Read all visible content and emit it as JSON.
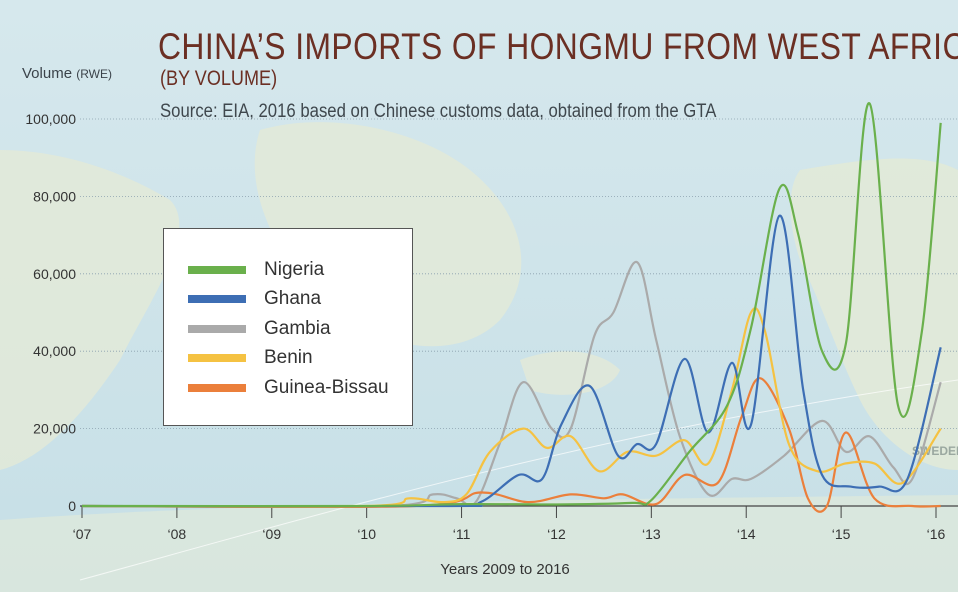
{
  "title": "CHINA’S IMPORTS OF HONGMU FROM WEST AFRICA",
  "subtitle": "(BY VOLUME)",
  "source": "Source: EIA, 2016 based on Chinese customs data, obtained from the GTA",
  "ylabel_main": "Volume",
  "ylabel_unit": "(RWE)",
  "xlabel": "Years 2009 to 2016",
  "map_label": "SWEDEN",
  "chart_data": {
    "type": "line",
    "title": "CHINA’S IMPORTS OF HONGMU FROM WEST AFRICA",
    "subtitle": "(BY VOLUME)",
    "ylabel": "Volume (RWE)",
    "xlabel": "Years 2009 to 2016",
    "ylim": [
      0,
      105000
    ],
    "xlim": [
      2007,
      2016.1
    ],
    "yticks": [
      0,
      20000,
      40000,
      60000,
      80000,
      100000
    ],
    "ytick_labels": [
      "0",
      "20,000",
      "40,000",
      "60,000",
      "80,000",
      "100,000"
    ],
    "xticks": [
      2007,
      2008,
      2009,
      2010,
      2011,
      2012,
      2013,
      2014,
      2015,
      2016
    ],
    "xtick_labels": [
      "‘07",
      "‘08",
      "‘09",
      "‘10",
      "‘11",
      "‘12",
      "‘13",
      "‘14",
      "‘15",
      "‘16"
    ],
    "legend_position": "left",
    "series": [
      {
        "name": "Nigeria",
        "color": "#6ab04c",
        "points": [
          [
            2007,
            0
          ],
          [
            2010,
            0
          ],
          [
            2011,
            500
          ],
          [
            2012,
            400
          ],
          [
            2012.8,
            800
          ],
          [
            2013,
            1500
          ],
          [
            2013.4,
            14000
          ],
          [
            2013.8,
            26000
          ],
          [
            2014.05,
            46000
          ],
          [
            2014.35,
            82000
          ],
          [
            2014.55,
            70000
          ],
          [
            2014.8,
            40000
          ],
          [
            2015.05,
            42000
          ],
          [
            2015.3,
            104000
          ],
          [
            2015.6,
            26000
          ],
          [
            2015.85,
            45000
          ],
          [
            2016.05,
            99000
          ]
        ]
      },
      {
        "name": "Ghana",
        "color": "#3d6eb4",
        "points": [
          [
            2007,
            0
          ],
          [
            2010.8,
            0
          ],
          [
            2011.2,
            1000
          ],
          [
            2011.6,
            8000
          ],
          [
            2011.85,
            7000
          ],
          [
            2012.05,
            21000
          ],
          [
            2012.35,
            31000
          ],
          [
            2012.65,
            13000
          ],
          [
            2012.85,
            16000
          ],
          [
            2013.05,
            16000
          ],
          [
            2013.35,
            38000
          ],
          [
            2013.6,
            19000
          ],
          [
            2013.85,
            37000
          ],
          [
            2014.05,
            21000
          ],
          [
            2014.35,
            75000
          ],
          [
            2014.6,
            30000
          ],
          [
            2014.8,
            8000
          ],
          [
            2015.1,
            5000
          ],
          [
            2015.4,
            5000
          ],
          [
            2015.7,
            7000
          ],
          [
            2016.05,
            41000
          ]
        ]
      },
      {
        "name": "Gambia",
        "color": "#aaaaaa",
        "points": [
          [
            2007,
            0
          ],
          [
            2010.2,
            0
          ],
          [
            2010.7,
            3000
          ],
          [
            2010.95,
            2000
          ],
          [
            2011.15,
            1000
          ],
          [
            2011.4,
            16000
          ],
          [
            2011.65,
            32000
          ],
          [
            2011.95,
            20000
          ],
          [
            2012.15,
            20000
          ],
          [
            2012.4,
            44000
          ],
          [
            2012.6,
            50000
          ],
          [
            2012.85,
            63000
          ],
          [
            2013.05,
            43000
          ],
          [
            2013.3,
            18000
          ],
          [
            2013.6,
            3000
          ],
          [
            2013.85,
            7000
          ],
          [
            2014.05,
            7000
          ],
          [
            2014.4,
            13000
          ],
          [
            2014.8,
            22000
          ],
          [
            2015.05,
            14000
          ],
          [
            2015.3,
            18000
          ],
          [
            2015.55,
            10000
          ],
          [
            2015.75,
            7000
          ],
          [
            2016.05,
            32000
          ]
        ]
      },
      {
        "name": "Benin",
        "color": "#f5c242",
        "points": [
          [
            2007,
            0
          ],
          [
            2010,
            0
          ],
          [
            2010.45,
            2000
          ],
          [
            2010.8,
            1000
          ],
          [
            2011.05,
            3000
          ],
          [
            2011.3,
            14000
          ],
          [
            2011.65,
            20000
          ],
          [
            2011.9,
            15000
          ],
          [
            2012.15,
            18000
          ],
          [
            2012.45,
            9000
          ],
          [
            2012.75,
            14000
          ],
          [
            2013.05,
            13000
          ],
          [
            2013.35,
            17000
          ],
          [
            2013.6,
            11000
          ],
          [
            2013.85,
            30000
          ],
          [
            2014.05,
            50000
          ],
          [
            2014.2,
            45000
          ],
          [
            2014.45,
            16000
          ],
          [
            2014.75,
            9000
          ],
          [
            2015.05,
            11000
          ],
          [
            2015.35,
            11000
          ],
          [
            2015.65,
            6000
          ],
          [
            2016.05,
            20000
          ]
        ]
      },
      {
        "name": "Guinea-Bissau",
        "color": "#eb7f3b",
        "points": [
          [
            2007,
            0
          ],
          [
            2010.5,
            0
          ],
          [
            2011.2,
            3500
          ],
          [
            2011.7,
            1000
          ],
          [
            2012.15,
            3000
          ],
          [
            2012.5,
            2000
          ],
          [
            2012.7,
            3000
          ],
          [
            2013.05,
            500
          ],
          [
            2013.35,
            8000
          ],
          [
            2013.7,
            6000
          ],
          [
            2013.95,
            23000
          ],
          [
            2014.15,
            33000
          ],
          [
            2014.45,
            20000
          ],
          [
            2014.65,
            2000
          ],
          [
            2014.85,
            0
          ],
          [
            2015.05,
            19000
          ],
          [
            2015.35,
            2000
          ],
          [
            2015.75,
            0
          ],
          [
            2016.05,
            0
          ]
        ]
      }
    ]
  }
}
